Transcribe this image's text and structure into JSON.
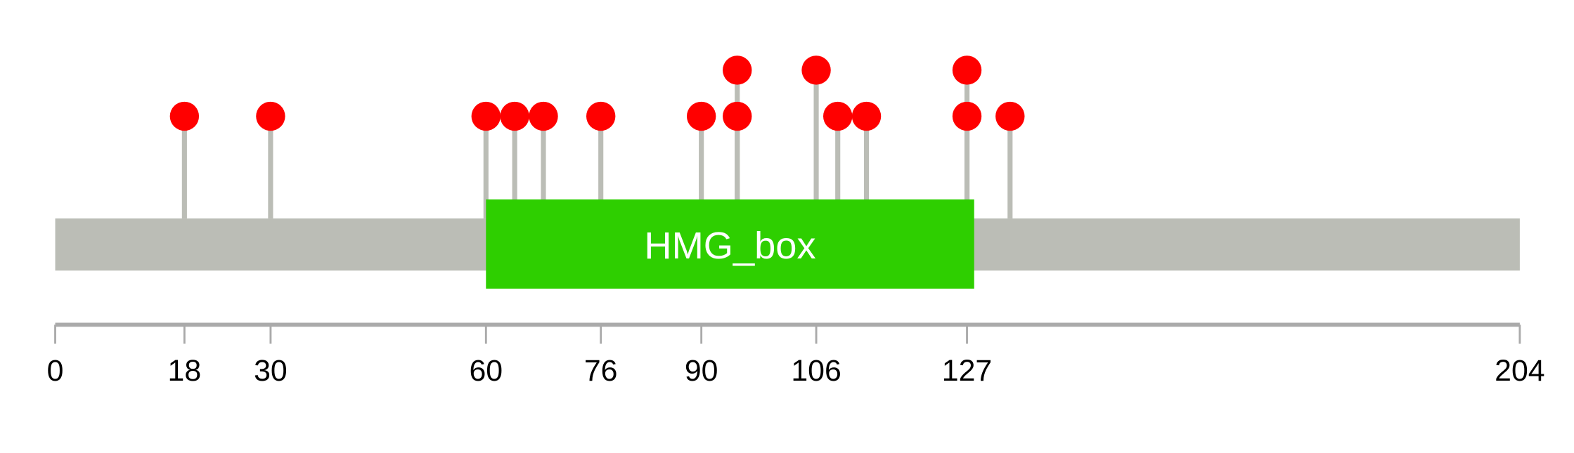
{
  "chart_data": {
    "type": "lollipop",
    "title": "",
    "protein_length": 204,
    "xlim": [
      0,
      204
    ],
    "x_ticks": [
      0,
      18,
      30,
      60,
      76,
      90,
      106,
      127,
      204
    ],
    "domains": [
      {
        "name": "HMG_box",
        "start": 60,
        "end": 128,
        "color": "#2ecf00"
      }
    ],
    "mutations": [
      {
        "position": 18,
        "count": 1
      },
      {
        "position": 30,
        "count": 1
      },
      {
        "position": 60,
        "count": 1
      },
      {
        "position": 64,
        "count": 1
      },
      {
        "position": 68,
        "count": 1
      },
      {
        "position": 76,
        "count": 1
      },
      {
        "position": 90,
        "count": 1
      },
      {
        "position": 95,
        "count": 1
      },
      {
        "position": 95,
        "count": 2
      },
      {
        "position": 106,
        "count": 2
      },
      {
        "position": 109,
        "count": 1
      },
      {
        "position": 113,
        "count": 1
      },
      {
        "position": 127,
        "count": 1
      },
      {
        "position": 127,
        "count": 2
      },
      {
        "position": 133,
        "count": 1
      }
    ],
    "colors": {
      "backbone": "#bbbdb6",
      "stick": "#bbbdb6",
      "head": "#ff0000",
      "axis": "#aaaaaa",
      "domain_label": "#ffffff"
    }
  }
}
